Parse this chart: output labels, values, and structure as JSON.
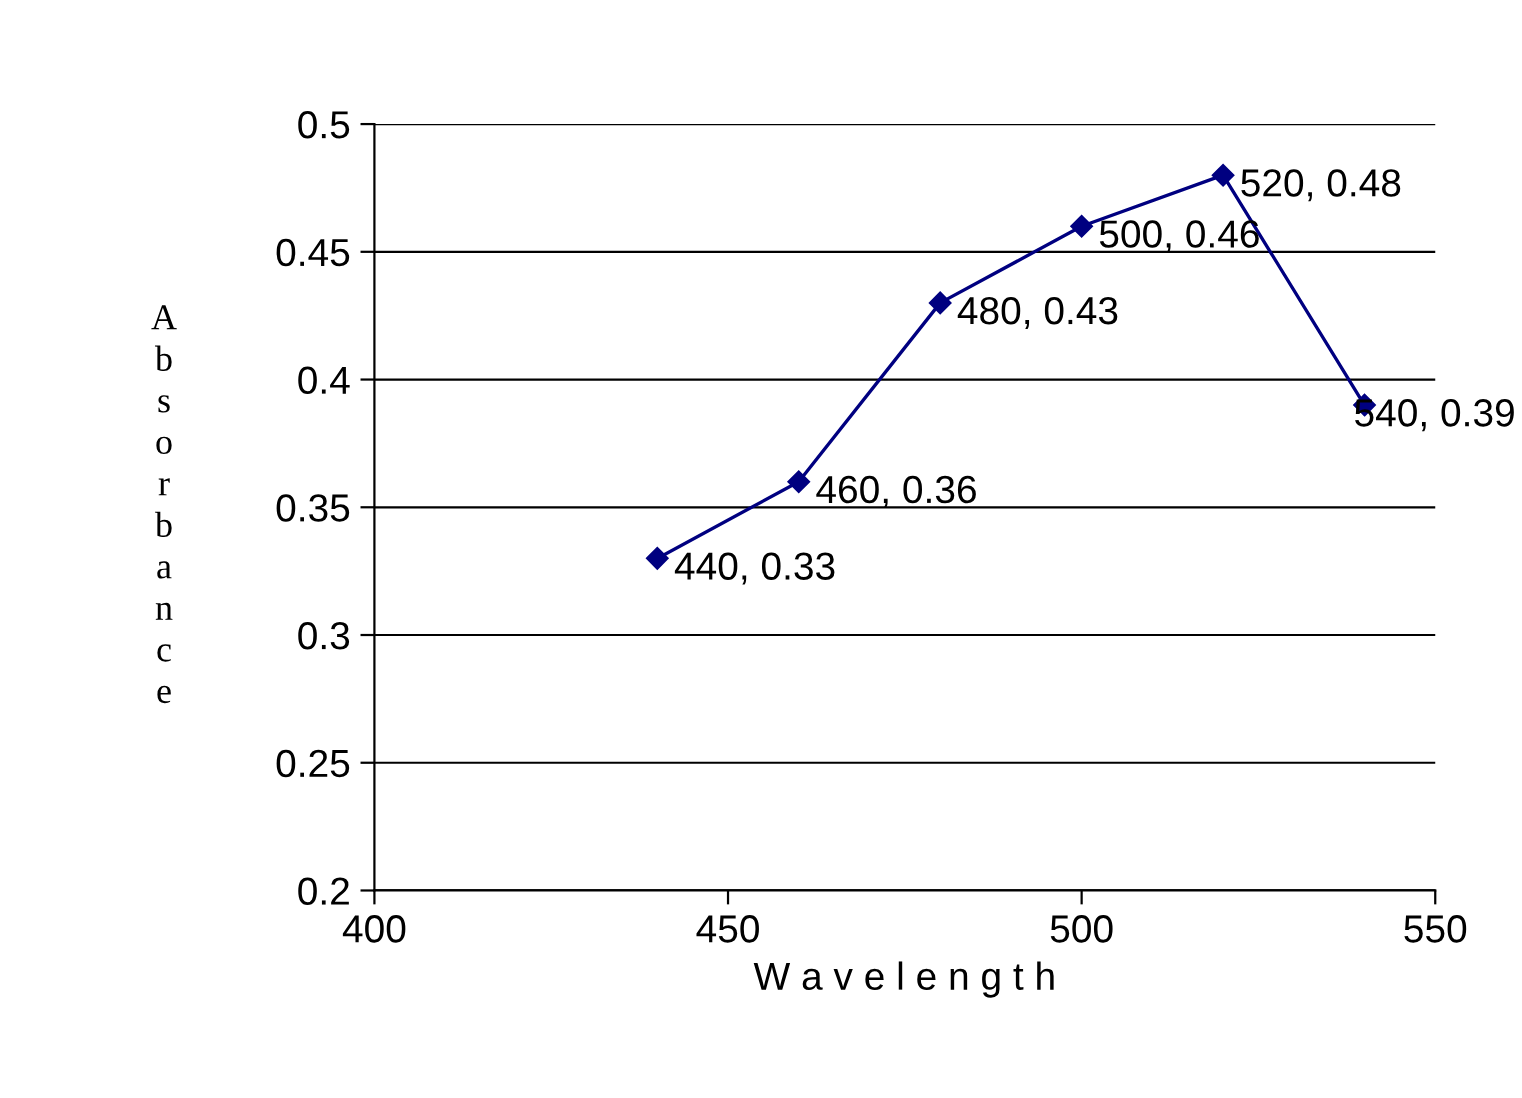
{
  "chart_data": {
    "type": "line",
    "xlabel": "W a v e l e n g t h",
    "ylabel": "Absorbance",
    "x": [
      440,
      460,
      480,
      500,
      520,
      540
    ],
    "series": [
      {
        "color": "#000080",
        "values": [
          0.33,
          0.36,
          0.43,
          0.46,
          0.48,
          0.39
        ],
        "value_labels": [
          "440, 0.33",
          "460, 0.36",
          "480, 0.43",
          "500, 0.46",
          "520, 0.48",
          "540, 0.39"
        ]
      }
    ],
    "xlim": [
      400,
      550
    ],
    "xticks": [
      400,
      450,
      500,
      550
    ],
    "ylim": [
      0.2,
      0.5
    ],
    "yticks": [
      0.2,
      0.25,
      0.3,
      0.35,
      0.4,
      0.45,
      0.5
    ],
    "grid": "y",
    "marker": "diamond",
    "line_style": "solid",
    "legend": false
  }
}
